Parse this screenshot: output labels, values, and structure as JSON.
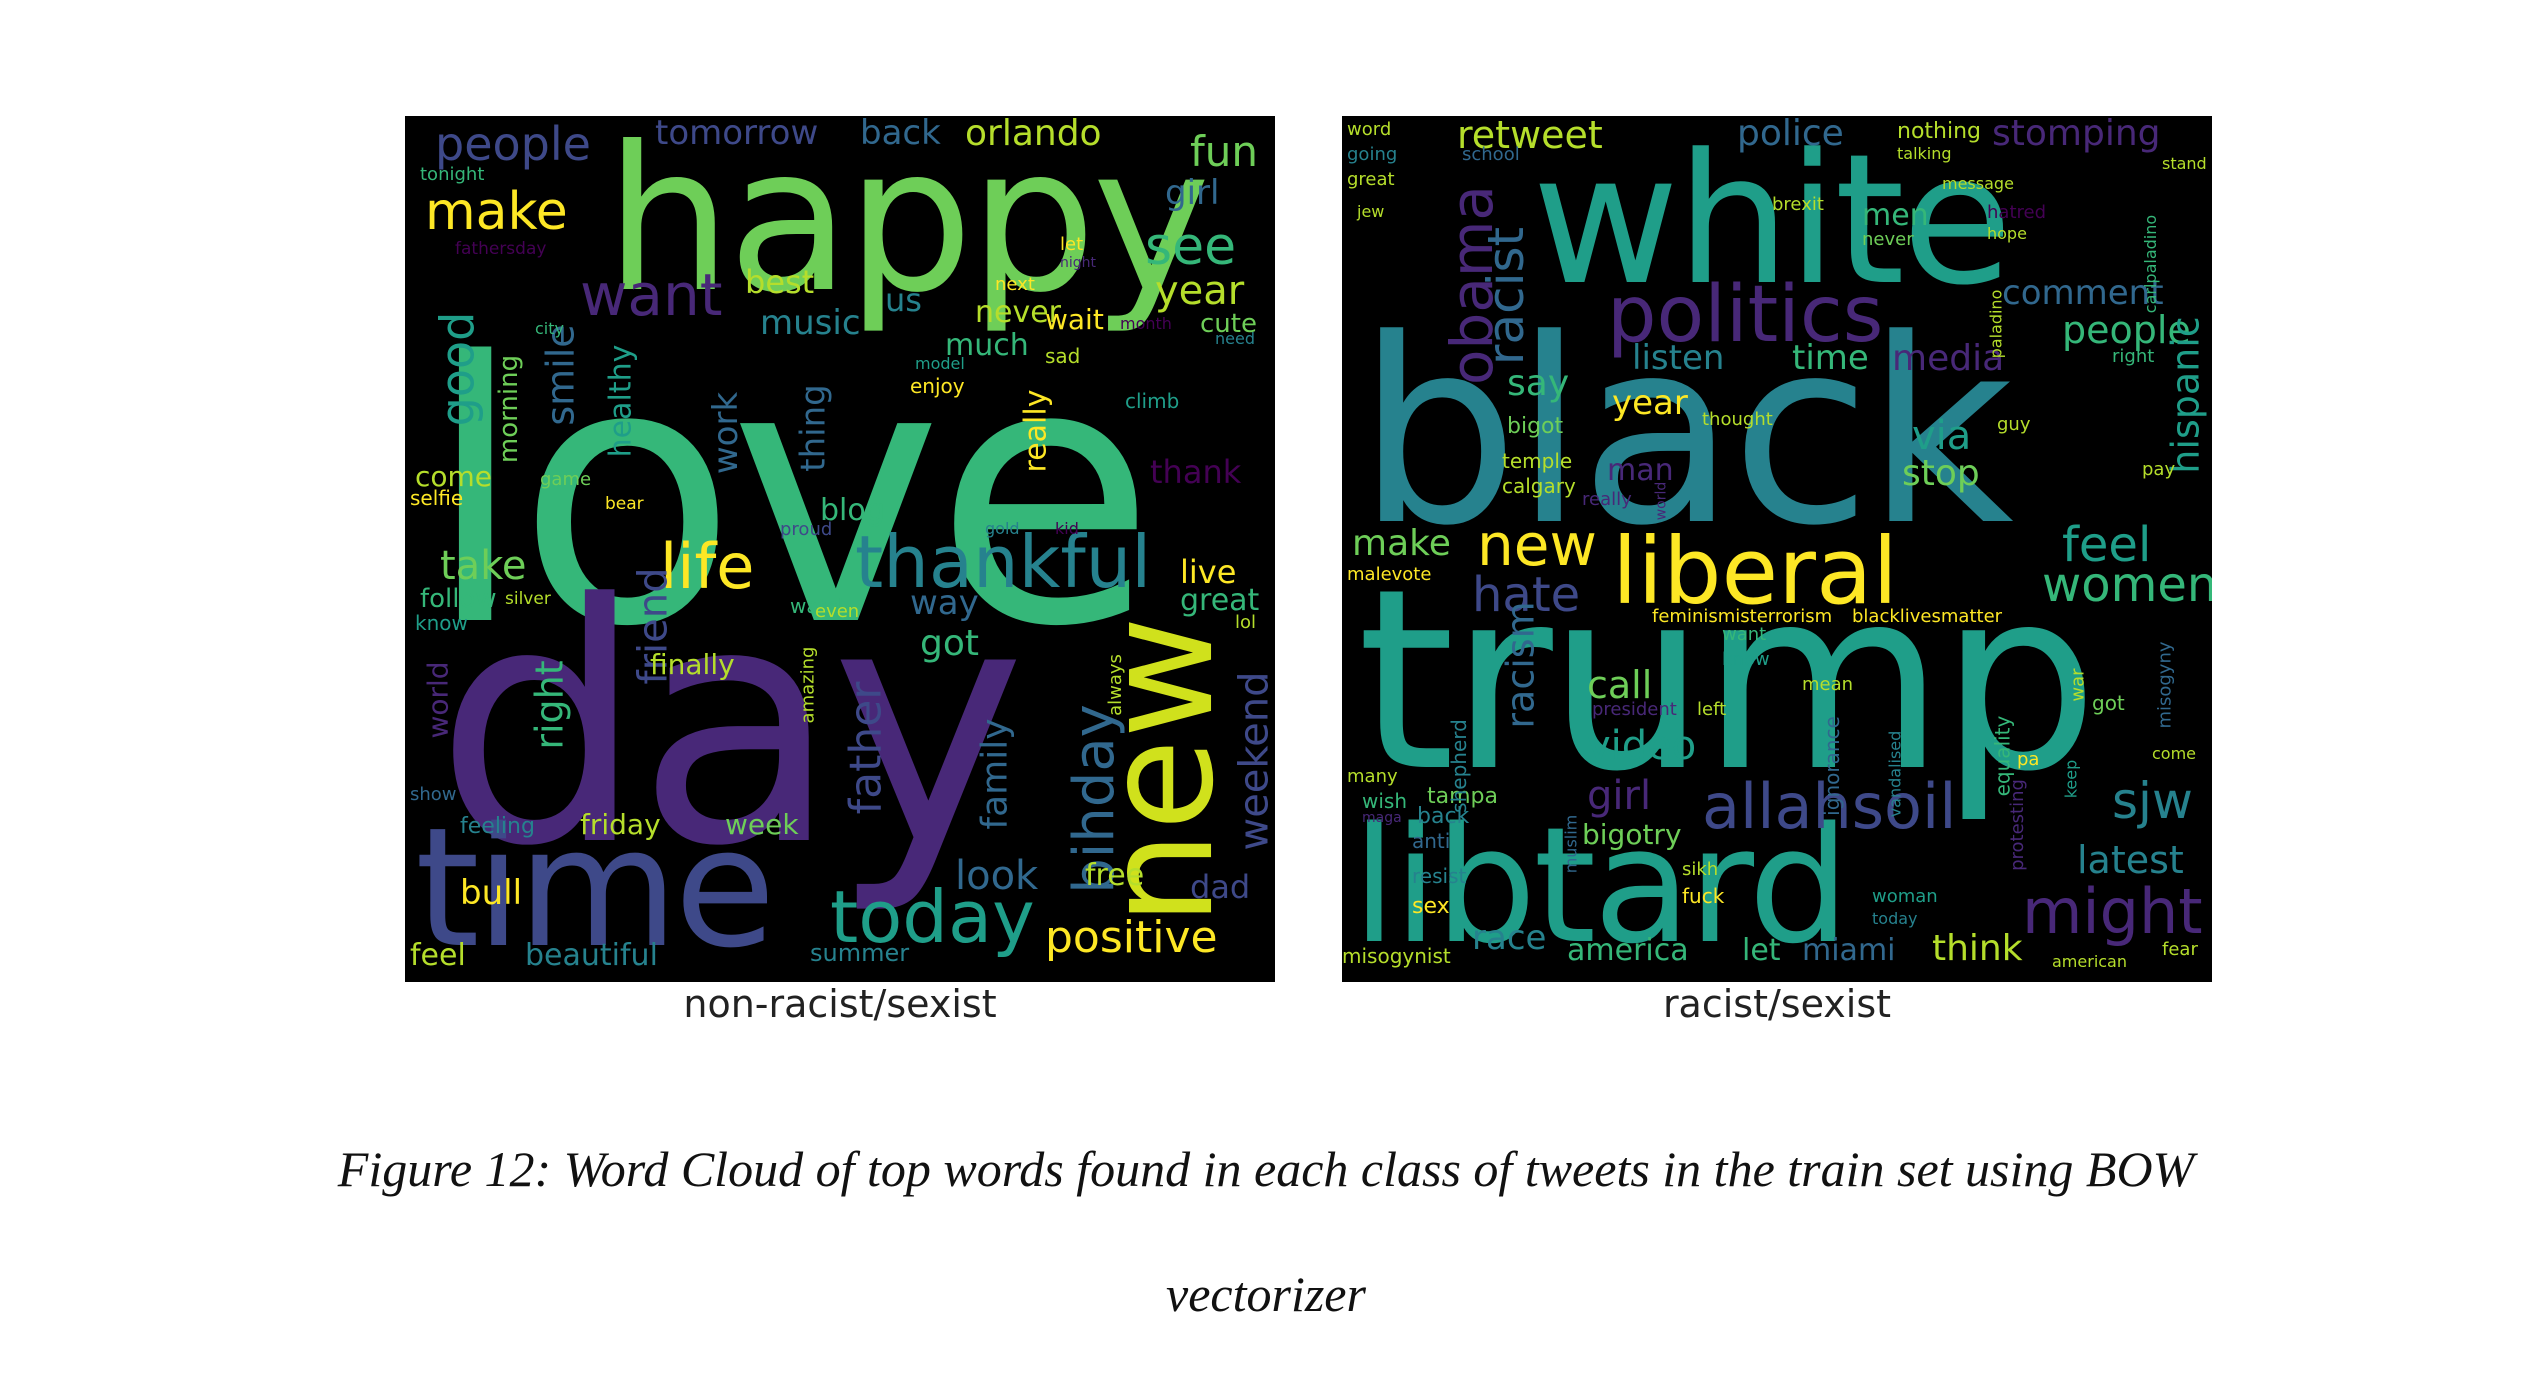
{
  "figure": {
    "caption_line1": "Figure 12: Word Cloud of top words found in each class of tweets in the train set using BOW",
    "caption_line2": "vectorizer"
  },
  "colors": {
    "green": "#35b779",
    "bright_green": "#6ece58",
    "yellow": "#fde725",
    "lime": "#b5de2b",
    "teal": "#1f9e89",
    "cyan": "#26828e",
    "blue": "#31688e",
    "indigo": "#3e4989",
    "purple": "#482878",
    "violet": "#440154"
  },
  "clouds": [
    {
      "label": "non-racist/sexist",
      "words": [
        "love",
        "day",
        "happy",
        "time",
        "new",
        "thankful",
        "today",
        "life",
        "positive",
        "bihday",
        "people",
        "make",
        "want",
        "see",
        "fun",
        "year",
        "good",
        "smile",
        "orlando",
        "tomorrow",
        "back",
        "girl",
        "music",
        "best",
        "us",
        "never",
        "wait",
        "much",
        "cute",
        "thank",
        "blog",
        "work",
        "thing",
        "healthy",
        "morning",
        "take",
        "friend",
        "right",
        "father",
        "family",
        "look",
        "got",
        "way",
        "weekend",
        "dad",
        "free",
        "live",
        "great",
        "bull",
        "feel",
        "beautiful",
        "summer",
        "friday",
        "week",
        "finally",
        "come",
        "selfie",
        "follow",
        "know",
        "world",
        "show",
        "feeling",
        "really",
        "tonight",
        "fathersday",
        "amazing",
        "always",
        "watch",
        "lol",
        "sad",
        "enjoy",
        "climb",
        "next",
        "let",
        "night",
        "month",
        "need",
        "proud",
        "city",
        "game",
        "bear",
        "gold",
        "kid",
        "even",
        "model",
        "silver"
      ]
    },
    {
      "label": "racist/sexist",
      "words": [
        "trump",
        "black",
        "white",
        "libtard",
        "liberal",
        "politics",
        "allahsoil",
        "new",
        "obama",
        "racist",
        "hate",
        "feel",
        "women",
        "sjw",
        "might",
        "people",
        "retweet",
        "police",
        "nothing",
        "stomping",
        "comment",
        "time",
        "media",
        "listen",
        "say",
        "via",
        "stop",
        "year",
        "bigot",
        "man",
        "temple",
        "calgary",
        "make",
        "racism",
        "video",
        "girl",
        "call",
        "america",
        "let",
        "miami",
        "think",
        "latest",
        "race",
        "hispanic",
        "misogynist",
        "sex",
        "resist",
        "anti",
        "tampa",
        "back",
        "bigotry",
        "fuck",
        "sikh",
        "president",
        "wish",
        "malevote",
        "feminismisterrorism",
        "blacklivesmatter",
        "men",
        "brexit",
        "world",
        "really",
        "thought",
        "shepherd",
        "ignorance",
        "equality",
        "protesting",
        "war",
        "misogyny",
        "keep",
        "got",
        "pay",
        "guy",
        "right",
        "carlpaladino",
        "paladino",
        "stand",
        "hope",
        "hatred",
        "never",
        "message",
        "talking",
        "jew",
        "school",
        "going",
        "great",
        "word",
        "woman",
        "today",
        "american",
        "fear",
        "come",
        "know",
        "want",
        "mean",
        "left",
        "vandalised",
        "pa",
        "many",
        "maga",
        "muslim"
      ]
    }
  ]
}
